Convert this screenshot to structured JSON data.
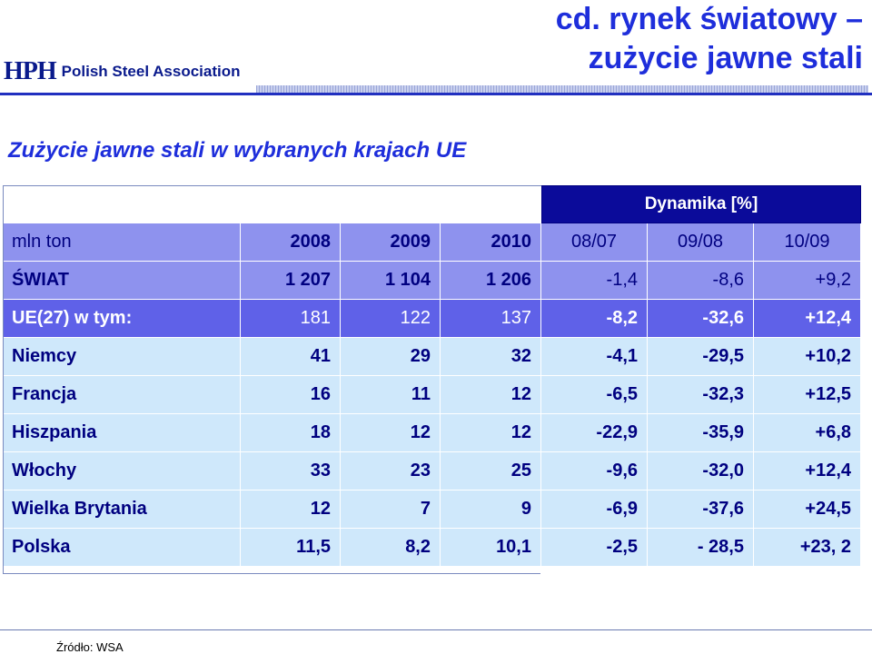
{
  "header": {
    "logo_mark": "HPH",
    "logo_text": "Polish Steel Association",
    "title_line1": "cd. rynek  światowy –",
    "title_line2": "zużycie jawne stali"
  },
  "subtitle": "Zużycie jawne stali w wybranych krajach UE",
  "table": {
    "group_header": "Dynamika [%]",
    "columns": [
      "mln ton",
      "2008",
      "2009",
      "2010",
      "08/07",
      "09/08",
      "10/09"
    ],
    "rows": [
      [
        "ŚWIAT",
        "1 207",
        "1 104",
        "1 206",
        "-1,4",
        "-8,6",
        "+9,2"
      ],
      [
        "UE(27) w tym:",
        "181",
        "122",
        "137",
        "-8,2",
        "-32,6",
        "+12,4"
      ],
      [
        "Niemcy",
        "41",
        "29",
        "32",
        "-4,1",
        "-29,5",
        "+10,2"
      ],
      [
        "Francja",
        "16",
        "11",
        "12",
        "-6,5",
        "-32,3",
        "+12,5"
      ],
      [
        "Hiszpania",
        "18",
        "12",
        "12",
        "-22,9",
        "-35,9",
        "+6,8"
      ],
      [
        "Włochy",
        "33",
        "23",
        "25",
        "-9,6",
        "-32,0",
        "+12,4"
      ],
      [
        "Wielka Brytania",
        "12",
        "7",
        "9",
        "-6,9",
        "-37,6",
        "+24,5"
      ],
      [
        "Polska",
        "11,5",
        "8,2",
        "10,1",
        "-2,5",
        "- 28,5",
        "+23, 2"
      ]
    ]
  },
  "footer": {
    "source": "Źródło: WSA"
  }
}
